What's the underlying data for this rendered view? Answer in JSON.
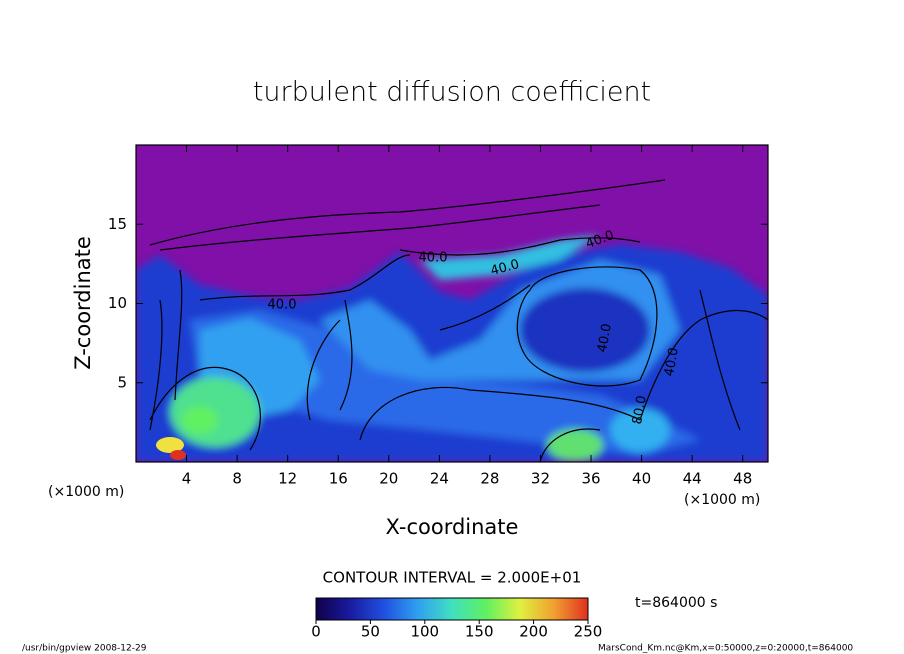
{
  "chart_data": {
    "type": "contour",
    "title": "turbulent diffusion coefficient",
    "xlabel": "X-coordinate",
    "ylabel": "Z-coordinate",
    "x_unit": "(×1000 m)",
    "y_unit": "(×1000 m)",
    "xlim": [
      0,
      50
    ],
    "ylim": [
      0,
      20
    ],
    "xticks": [
      4,
      8,
      12,
      16,
      20,
      24,
      28,
      32,
      36,
      40,
      44,
      48
    ],
    "yticks": [
      5,
      10,
      15
    ],
    "contour_labels": [
      {
        "value": 40,
        "label": "40.0"
      },
      {
        "value": 40,
        "label": "40.0"
      },
      {
        "value": 40,
        "label": "40.0"
      },
      {
        "value": 40,
        "label": "40.0"
      },
      {
        "value": 40,
        "label": "40.0"
      },
      {
        "value": 40,
        "label": "40.0"
      },
      {
        "value": 80,
        "label": "80.0"
      }
    ],
    "contour_interval_text": "CONTOUR INTERVAL = 2.000E+01",
    "time_text": "t=864000 s",
    "colorbar": {
      "lim": [
        0,
        250
      ],
      "ticks": [
        0,
        50,
        100,
        150,
        200,
        250
      ],
      "colors": [
        "#10004a",
        "#1a1aa0",
        "#2050e0",
        "#30a0f0",
        "#40e0c0",
        "#60f060",
        "#e0f040",
        "#f0a030",
        "#e03020"
      ]
    },
    "footer_left": "/usr/bin/gpview  2008-12-29",
    "footer_right": "MarsCond_Km.nc@Km,x=0:50000,z=0:20000,t=864000"
  }
}
